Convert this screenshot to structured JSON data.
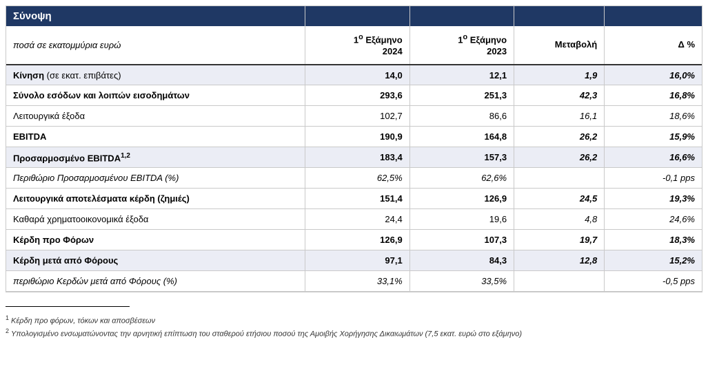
{
  "table": {
    "title": "Σύνοψη",
    "subtitle": "ποσά σε εκατομμύρια ευρώ",
    "col_headers": {
      "c1_line1": "1",
      "c1_sup": "ο",
      "c1_line1b": " Εξάμηνο",
      "c1_line2": "2024",
      "c2_line1": "1",
      "c2_sup": "ο",
      "c2_line1b": " Εξάμηνο",
      "c2_line2": "2023",
      "c3": "Μεταβολή",
      "c4": "Δ %"
    },
    "rows": [
      {
        "label_bold": "Κίνηση",
        "label_rest": " (σε εκατ. επιβάτες)",
        "v1": "14,0",
        "v2": "12,1",
        "v3": "1,9",
        "v4": "16,0%",
        "style": "bold",
        "shade": true,
        "mixed_label": true
      },
      {
        "label": "Σύνολο εσόδων και λοιπών εισοδημάτων",
        "v1": "293,6",
        "v2": "251,3",
        "v3": "42,3",
        "v4": "16,8%",
        "style": "bold",
        "shade": false
      },
      {
        "label": "Λειτουργικά έξοδα",
        "v1": "102,7",
        "v2": "86,6",
        "v3": "16,1",
        "v4": "18,6%",
        "style": "normal",
        "shade": false
      },
      {
        "label": "EBITDA",
        "v1": "190,9",
        "v2": "164,8",
        "v3": "26,2",
        "v4": "15,9%",
        "style": "bold",
        "shade": false
      },
      {
        "label_bold": "Προσαρμοσμένο EBITDA",
        "label_sup": "1,2",
        "v1": "183,4",
        "v2": "157,3",
        "v3": "26,2",
        "v4": "16,6%",
        "style": "bold",
        "shade": true,
        "has_sup": true
      },
      {
        "label": "Περιθώριο Προσαρμοσμένου EBITDA (%)",
        "v1": "62,5%",
        "v2": "62,6%",
        "v3": "",
        "v4": "-0,1 pps",
        "style": "italic",
        "shade": false
      },
      {
        "label": "Λειτουργικά αποτελέσματα κέρδη (ζημιές)",
        "v1": "151,4",
        "v2": "126,9",
        "v3": "24,5",
        "v4": "19,3%",
        "style": "bold",
        "shade": false
      },
      {
        "label": "Καθαρά χρηματοοικονομικά έξοδα",
        "v1": "24,4",
        "v2": "19,6",
        "v3": "4,8",
        "v4": "24,6%",
        "style": "normal",
        "shade": false
      },
      {
        "label": "Κέρδη προ Φόρων",
        "v1": "126,9",
        "v2": "107,3",
        "v3": "19,7",
        "v4": "18,3%",
        "style": "bold",
        "shade": false
      },
      {
        "label": "Κέρδη μετά από Φόρους",
        "v1": "97,1",
        "v2": "84,3",
        "v3": "12,8",
        "v4": "15,2%",
        "style": "bold",
        "shade": true
      },
      {
        "label": "περιθώριο Κερδών μετά από Φόρους (%)",
        "v1": "33,1%",
        "v2": "33,5%",
        "v3": "",
        "v4": "-0,5 pps",
        "style": "italic",
        "shade": false
      }
    ]
  },
  "footnotes": {
    "f1_sup": "1",
    "f1_text": "Κέρδη προ φόρων, τόκων και αποσβέσεων",
    "f2_sup": "2",
    "f2_text": "Υπολογισμένο ενσωματώνοντας την αρνητική επίπτωση του σταθερού ετήσιου ποσού της Αμοιβής Χορήγησης Δικαιωμάτων (7,5 εκατ. ευρώ στο εξάμηνο)"
  },
  "styles": {
    "header_bg": "#1f3864",
    "header_fg": "#ffffff",
    "shade_bg": "#ebedf5",
    "border_color": "#c9c9c9"
  }
}
